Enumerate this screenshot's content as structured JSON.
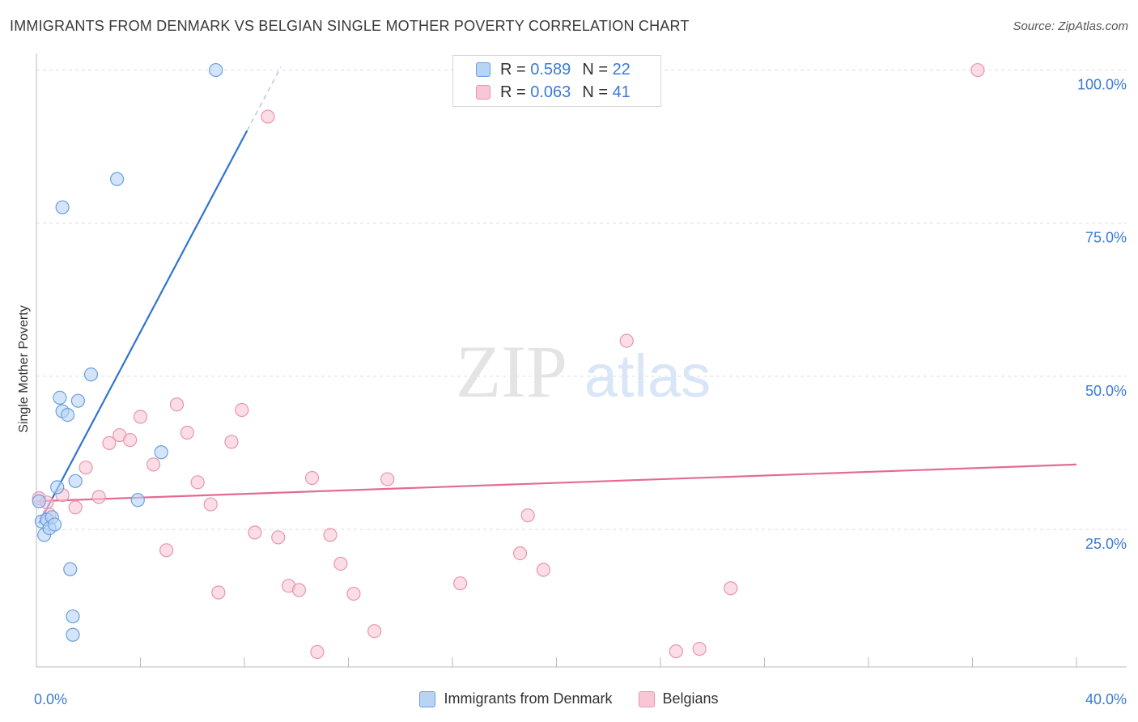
{
  "header": {
    "title": "IMMIGRANTS FROM DENMARK VS BELGIAN SINGLE MOTHER POVERTY CORRELATION CHART",
    "source": "Source: ZipAtlas.com"
  },
  "watermark": {
    "zip": "ZIP",
    "atlas": "atlas"
  },
  "legend": {
    "rows": [
      {
        "r_label": "R =",
        "r_value": "0.589",
        "n_label": "N =",
        "n_value": "22"
      },
      {
        "r_label": "R =",
        "r_value": "0.063",
        "n_label": "N =",
        "n_value": "41"
      }
    ]
  },
  "colors": {
    "blue_fill": "#b8d4f5",
    "blue_stroke": "#6a9fde",
    "blue_line": "#2f74d0",
    "pink_fill": "#f9c6d5",
    "pink_stroke": "#e895b0",
    "pink_line": "#e36b96",
    "tick_text": "#3a7bd5",
    "grid": "#dddddd"
  },
  "chart_data": {
    "type": "scatter",
    "title": "IMMIGRANTS FROM DENMARK VS BELGIAN SINGLE MOTHER POVERTY CORRELATION CHART",
    "xlabel": "",
    "ylabel": "Single Mother Poverty",
    "xlim": [
      0,
      40
    ],
    "ylim": [
      4,
      101
    ],
    "x_tick_labels": [
      "0.0%",
      "40.0%"
    ],
    "y_ticks": [
      25,
      50,
      75,
      100
    ],
    "y_tick_labels": [
      "25.0%",
      "50.0%",
      "75.0%",
      "100.0%"
    ],
    "grid": true,
    "series": [
      {
        "name": "Immigrants from Denmark",
        "color": "blue",
        "points": [
          {
            "x": 0.1,
            "y": 29.6
          },
          {
            "x": 0.2,
            "y": 26.3
          },
          {
            "x": 0.3,
            "y": 24.1
          },
          {
            "x": 0.4,
            "y": 26.6
          },
          {
            "x": 0.5,
            "y": 25.2
          },
          {
            "x": 0.6,
            "y": 27.0
          },
          {
            "x": 0.7,
            "y": 25.8
          },
          {
            "x": 0.8,
            "y": 31.9
          },
          {
            "x": 0.9,
            "y": 46.5
          },
          {
            "x": 1.0,
            "y": 44.3
          },
          {
            "x": 1.0,
            "y": 77.6
          },
          {
            "x": 1.2,
            "y": 43.7
          },
          {
            "x": 1.3,
            "y": 18.5
          },
          {
            "x": 1.4,
            "y": 7.8
          },
          {
            "x": 1.4,
            "y": 10.8
          },
          {
            "x": 1.5,
            "y": 32.9
          },
          {
            "x": 1.6,
            "y": 46.0
          },
          {
            "x": 2.1,
            "y": 50.3
          },
          {
            "x": 3.1,
            "y": 82.2
          },
          {
            "x": 3.9,
            "y": 29.8
          },
          {
            "x": 4.8,
            "y": 37.6
          },
          {
            "x": 6.9,
            "y": 100.0
          }
        ]
      },
      {
        "name": "Belgians",
        "color": "pink",
        "points": [
          {
            "x": 0.1,
            "y": 30.1
          },
          {
            "x": 0.4,
            "y": 29.4
          },
          {
            "x": 0.5,
            "y": 27.4
          },
          {
            "x": 1.0,
            "y": 30.6
          },
          {
            "x": 1.5,
            "y": 28.6
          },
          {
            "x": 1.9,
            "y": 35.1
          },
          {
            "x": 2.4,
            "y": 30.3
          },
          {
            "x": 2.8,
            "y": 39.1
          },
          {
            "x": 3.2,
            "y": 40.4
          },
          {
            "x": 3.6,
            "y": 39.6
          },
          {
            "x": 4.0,
            "y": 43.4
          },
          {
            "x": 4.5,
            "y": 35.6
          },
          {
            "x": 5.0,
            "y": 21.6
          },
          {
            "x": 5.4,
            "y": 45.4
          },
          {
            "x": 5.8,
            "y": 40.8
          },
          {
            "x": 6.2,
            "y": 32.7
          },
          {
            "x": 6.7,
            "y": 29.1
          },
          {
            "x": 7.0,
            "y": 14.7
          },
          {
            "x": 7.5,
            "y": 39.3
          },
          {
            "x": 7.9,
            "y": 44.5
          },
          {
            "x": 8.4,
            "y": 24.5
          },
          {
            "x": 8.9,
            "y": 92.4
          },
          {
            "x": 9.3,
            "y": 23.7
          },
          {
            "x": 9.7,
            "y": 15.8
          },
          {
            "x": 10.1,
            "y": 15.1
          },
          {
            "x": 10.6,
            "y": 33.4
          },
          {
            "x": 10.8,
            "y": 5.0
          },
          {
            "x": 11.3,
            "y": 24.1
          },
          {
            "x": 11.7,
            "y": 19.4
          },
          {
            "x": 12.2,
            "y": 14.5
          },
          {
            "x": 13.0,
            "y": 8.4
          },
          {
            "x": 13.5,
            "y": 33.2
          },
          {
            "x": 16.3,
            "y": 16.2
          },
          {
            "x": 18.6,
            "y": 21.1
          },
          {
            "x": 18.9,
            "y": 27.3
          },
          {
            "x": 19.5,
            "y": 18.4
          },
          {
            "x": 22.7,
            "y": 55.8
          },
          {
            "x": 24.6,
            "y": 5.1
          },
          {
            "x": 25.5,
            "y": 5.5
          },
          {
            "x": 26.7,
            "y": 15.4
          },
          {
            "x": 36.2,
            "y": 100.0
          }
        ]
      }
    ],
    "trendlines": [
      {
        "series": "Immigrants from Denmark",
        "x_start": 0.1,
        "y_start": 26.0,
        "x_end": 8.1,
        "y_end": 90.1,
        "dashed_to_x": 9.4,
        "dashed_to_y": 100.5
      },
      {
        "series": "Belgians",
        "x_start": 0.0,
        "y_start": 29.6,
        "x_end": 40.0,
        "y_end": 35.6
      }
    ]
  },
  "bottom_legend": {
    "items": [
      {
        "label": "Immigrants from Denmark"
      },
      {
        "label": "Belgians"
      }
    ]
  }
}
